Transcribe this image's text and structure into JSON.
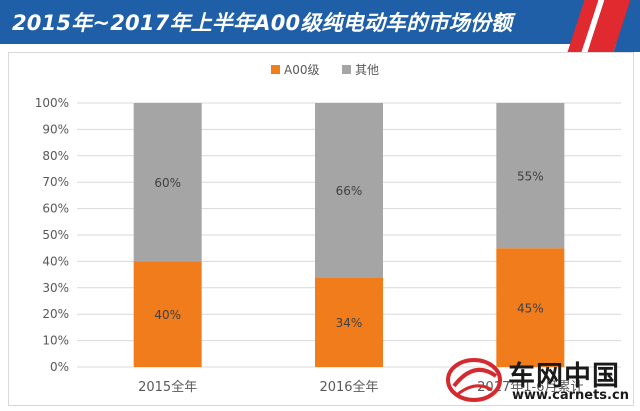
{
  "header": {
    "title": "2015年~2017年上半年A00级纯电动车的市场份额"
  },
  "colors": {
    "header_bg": "#1f5fa8",
    "accent_red": "#e02a2f",
    "series_a00": "#f07c1c",
    "series_other": "#a5a5a5",
    "axis_text": "#595959",
    "grid": "#d9d9d9"
  },
  "chart_data": {
    "type": "bar",
    "stacked": true,
    "percent": true,
    "categories": [
      "2015全年",
      "2016全年",
      "2017年1-6月累计"
    ],
    "series": [
      {
        "name": "A00级",
        "values": [
          40,
          34,
          45
        ],
        "labels": [
          "40%",
          "34%",
          "45%"
        ]
      },
      {
        "name": "其他",
        "values": [
          60,
          66,
          55
        ],
        "labels": [
          "60%",
          "66%",
          "55%"
        ]
      }
    ],
    "yticks": [
      "0%",
      "10%",
      "20%",
      "30%",
      "40%",
      "50%",
      "60%",
      "70%",
      "80%",
      "90%",
      "100%"
    ],
    "ylim": [
      0,
      100
    ],
    "legend_position": "top-center",
    "grid": true
  },
  "watermark": {
    "title": "车网中国",
    "url": "www.carnets.cn"
  }
}
